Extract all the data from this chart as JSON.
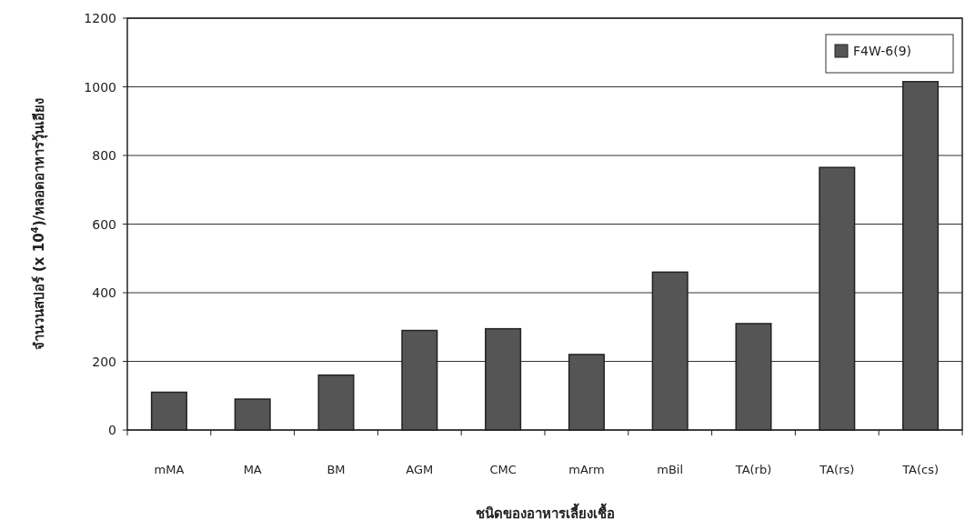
{
  "chart_data": {
    "type": "bar",
    "xlabel": "ชนิดของอาหารเลี้ยงเชื้อ",
    "ylabel": "จำนวนสปอร์ (x 10$^{4}$)/หลอดอาหารวุ้นเอียง",
    "categories": [
      "mMA",
      "MA",
      "BM",
      "AGM",
      "CMC",
      "mArm",
      "mBil",
      "TA(rb)",
      "TA(rs)",
      "TA(cs)"
    ],
    "series": [
      {
        "name": "F4W-6(9)",
        "color": "#555555",
        "values": [
          110,
          90,
          160,
          290,
          295,
          220,
          460,
          310,
          765,
          1015
        ]
      }
    ],
    "ylim": [
      0,
      1200
    ],
    "yticks": [
      0,
      200,
      400,
      600,
      800,
      1000,
      1200
    ],
    "grid": "y",
    "legend": "top right"
  }
}
